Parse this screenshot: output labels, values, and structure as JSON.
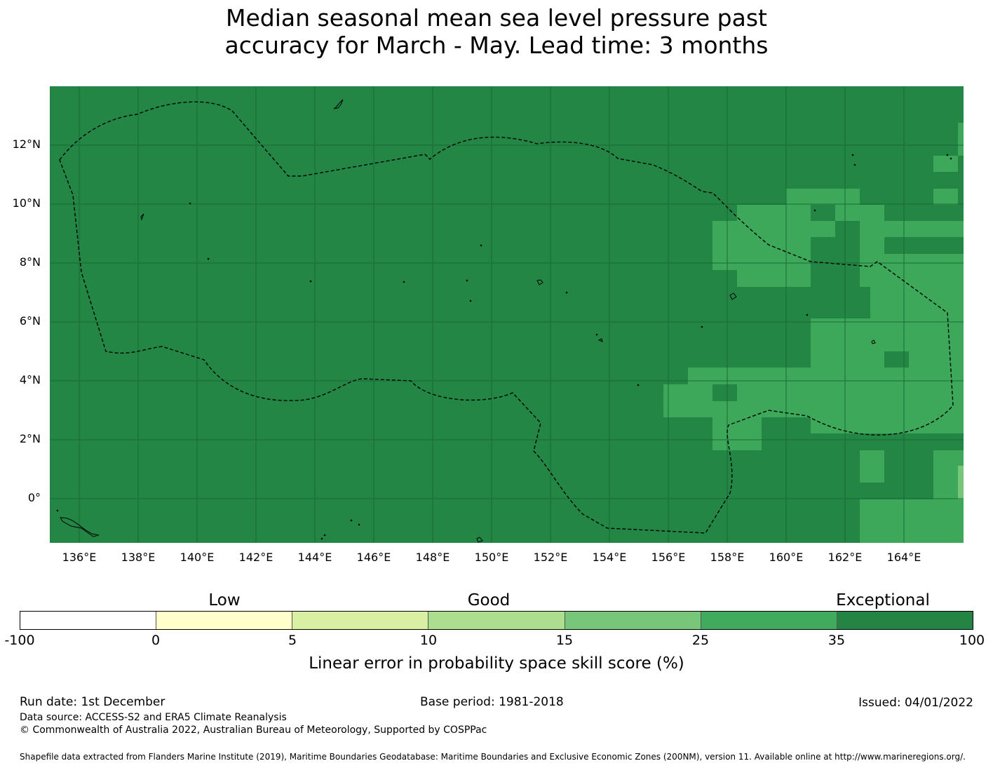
{
  "title": {
    "line1": "Median seasonal mean sea level pressure past",
    "line2": "accuracy for March - May. Lead time: 3 months"
  },
  "map": {
    "lat_labels": [
      "12°N",
      "10°N",
      "8°N",
      "6°N",
      "4°N",
      "2°N",
      "0°"
    ],
    "lon_labels": [
      "136°E",
      "138°E",
      "140°E",
      "142°E",
      "144°E",
      "146°E",
      "148°E",
      "150°E",
      "152°E",
      "154°E",
      "156°E",
      "158°E",
      "160°E",
      "162°E",
      "164°E"
    ],
    "region_colors": {
      "exceptional": "#238645",
      "very_good": "#3da85a"
    }
  },
  "colorbar": {
    "categories": [
      "Low",
      "Good",
      "Exceptional"
    ],
    "ticks": [
      "-100",
      "0",
      "5",
      "10",
      "15",
      "25",
      "35",
      "100"
    ],
    "colors": [
      "#ffffff",
      "#ffffcc",
      "#d9f0a3",
      "#addd8e",
      "#78c679",
      "#41ab5d",
      "#238443"
    ],
    "label": "Linear error in probability space skill score (%)"
  },
  "footer": {
    "run_date": "Run date: 1st December",
    "base_period": "Base period: 1981-2018",
    "issued": "Issued: 04/01/2022",
    "data_source": "Data source: ACCESS-S2 and ERA5 Climate Reanalysis",
    "copyright": "© Commonwealth of Australia 2022, Australian Bureau of Meteorology, Supported by COSPPac",
    "shapefile": "Shapefile data extracted from Flanders Marine Institute (2019), Maritime Boundaries Geodatabase: Maritime Boundaries and Exclusive Economic Zones (200NM), version 11. Available online at http://www.marineregions.org/."
  }
}
